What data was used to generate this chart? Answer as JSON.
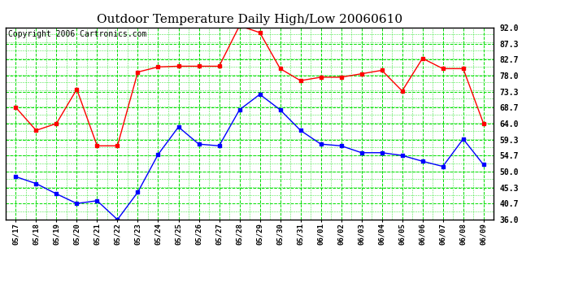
{
  "title": "Outdoor Temperature Daily High/Low 20060610",
  "copyright": "Copyright 2006 Cartronics.com",
  "dates": [
    "05/17",
    "05/18",
    "05/19",
    "05/20",
    "05/21",
    "05/22",
    "05/23",
    "05/24",
    "05/25",
    "05/26",
    "05/27",
    "05/28",
    "05/29",
    "05/30",
    "05/31",
    "06/01",
    "06/02",
    "06/03",
    "06/04",
    "06/05",
    "06/06",
    "06/07",
    "06/08",
    "06/09"
  ],
  "high_temps": [
    68.7,
    62.0,
    64.0,
    74.0,
    57.5,
    57.5,
    79.0,
    80.5,
    80.7,
    80.7,
    80.7,
    92.5,
    90.5,
    80.0,
    76.5,
    77.5,
    77.5,
    78.5,
    79.5,
    73.5,
    83.0,
    80.0,
    80.0,
    64.0
  ],
  "low_temps": [
    48.5,
    46.5,
    43.5,
    40.7,
    41.5,
    36.0,
    44.0,
    55.0,
    63.0,
    58.0,
    57.5,
    68.0,
    72.5,
    68.0,
    62.0,
    58.0,
    57.5,
    55.5,
    55.5,
    54.7,
    53.0,
    51.5,
    59.5,
    52.0
  ],
  "ylim": [
    36.0,
    92.0
  ],
  "yticks": [
    36.0,
    40.7,
    45.3,
    50.0,
    54.7,
    59.3,
    64.0,
    68.7,
    73.3,
    78.0,
    82.7,
    87.3,
    92.0
  ],
  "high_color": "red",
  "low_color": "blue",
  "bg_color": "#ffffff",
  "plot_bg_color": "#ffffff",
  "grid_color": "#00dd00",
  "title_fontsize": 11,
  "copyright_fontsize": 7
}
